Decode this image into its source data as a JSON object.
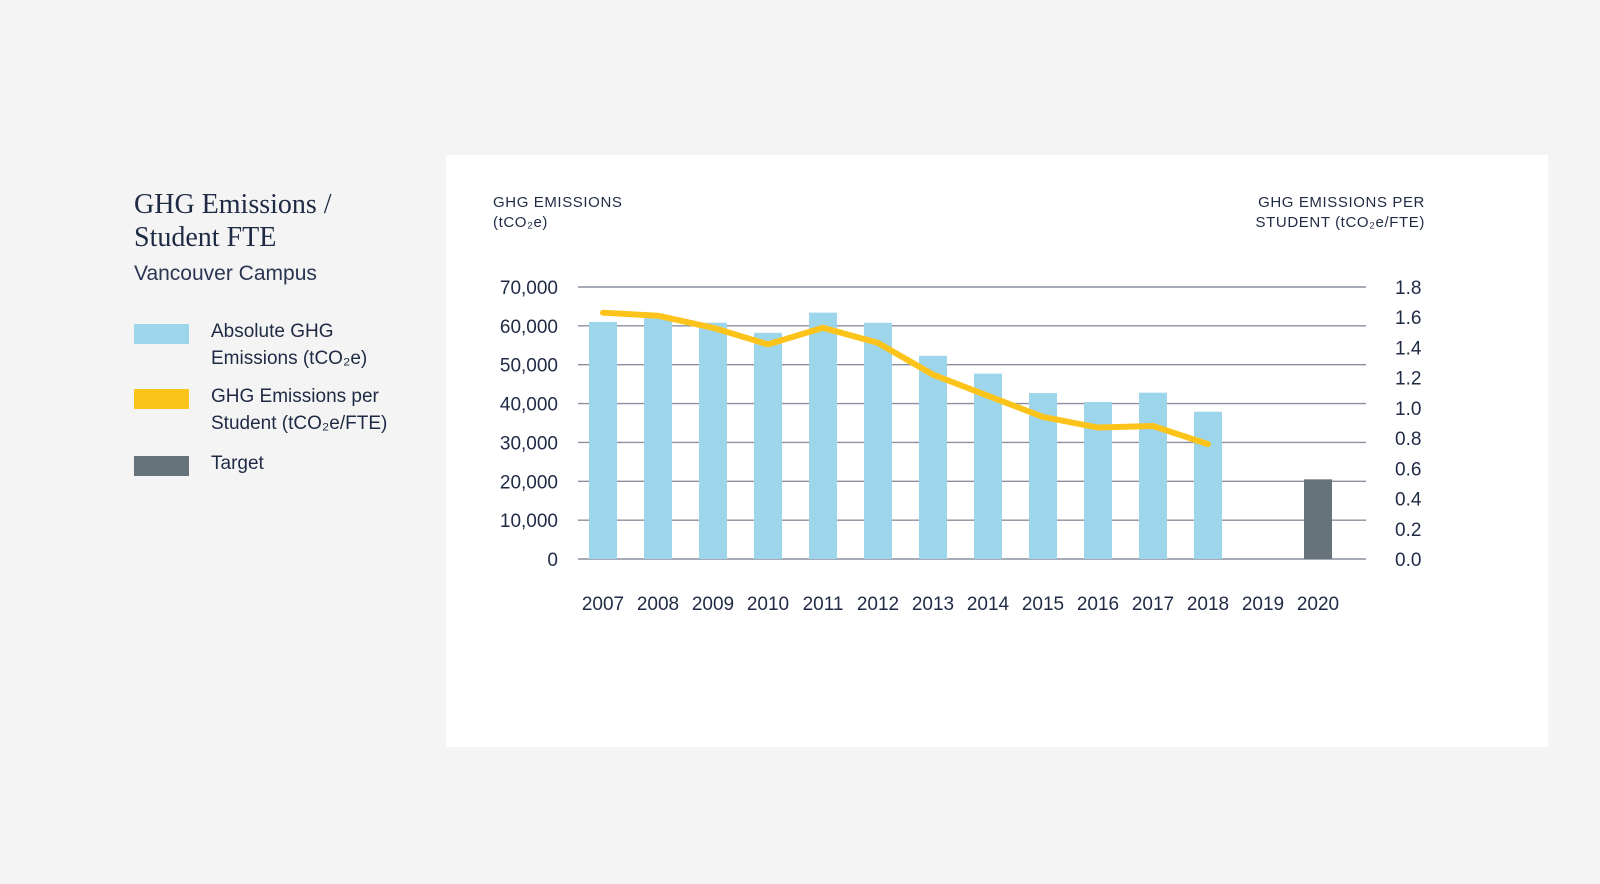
{
  "title_line1": "GHG Emissions /",
  "title_line2": "Student FTE",
  "subtitle": "Vancouver Campus",
  "legend": [
    {
      "label_line1": "Absolute GHG",
      "label_line2": "Emissions (tCO₂e)",
      "color": "#9dd5ea"
    },
    {
      "label_line1": "GHG Emissions per",
      "label_line2": "Student (tCO₂e/FTE)",
      "color": "#fcc41a"
    },
    {
      "label_line1": "Target",
      "label_line2": "",
      "color": "#67737a"
    }
  ],
  "left_axis_title": [
    "GHG EMISSIONS",
    "(tCO₂e)"
  ],
  "right_axis_title": [
    "GHG EMISSIONS PER",
    "STUDENT (tCO₂e/FTE)"
  ],
  "chart_data": {
    "type": "bar",
    "categories": [
      "2007",
      "2008",
      "2009",
      "2010",
      "2011",
      "2012",
      "2013",
      "2014",
      "2015",
      "2016",
      "2017",
      "2018",
      "2019",
      "2020"
    ],
    "series": [
      {
        "name": "Absolute GHG Emissions (tCO₂e)",
        "type": "bar",
        "axis": "left",
        "color": "#9dd5ea",
        "values": [
          61000,
          62000,
          60800,
          58200,
          63400,
          60800,
          52300,
          47700,
          42700,
          40400,
          42800,
          37900,
          null,
          null
        ]
      },
      {
        "name": "Target",
        "type": "bar",
        "axis": "left",
        "color": "#67737a",
        "values": [
          null,
          null,
          null,
          null,
          null,
          null,
          null,
          null,
          null,
          null,
          null,
          null,
          null,
          20500
        ]
      },
      {
        "name": "GHG Emissions per Student (tCO₂e/FTE)",
        "type": "line",
        "axis": "right",
        "color": "#fcc41a",
        "values": [
          1.63,
          1.61,
          1.53,
          1.42,
          1.53,
          1.43,
          1.22,
          1.08,
          0.94,
          0.87,
          0.88,
          0.76,
          null,
          null
        ]
      }
    ],
    "left_axis": {
      "ylim": [
        0,
        70000
      ],
      "ticks": [
        0,
        10000,
        20000,
        30000,
        40000,
        50000,
        60000,
        70000
      ],
      "tick_labels": [
        "0",
        "10,000",
        "20,000",
        "30,000",
        "40,000",
        "50,000",
        "60,000",
        "70,000"
      ]
    },
    "right_axis": {
      "ylim": [
        0,
        1.8
      ],
      "ticks": [
        0,
        0.2,
        0.4,
        0.6,
        0.8,
        1.0,
        1.2,
        1.4,
        1.6,
        1.8
      ],
      "tick_labels": [
        "0.0",
        "0.2",
        "0.4",
        "0.6",
        "0.8",
        "1.0",
        "1.2",
        "1.4",
        "1.6",
        "1.8"
      ]
    },
    "grid": true,
    "gridline_color": "#8a8f9e"
  }
}
